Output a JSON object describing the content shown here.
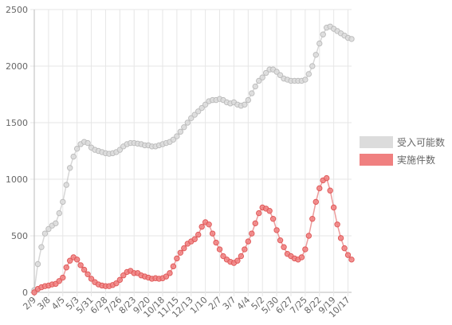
{
  "chart_data": {
    "type": "line",
    "categories": [
      "2/9",
      null,
      null,
      null,
      "3/8",
      null,
      null,
      null,
      "4/5",
      null,
      null,
      null,
      "5/3",
      null,
      null,
      null,
      "5/31",
      null,
      null,
      null,
      "6/28",
      null,
      null,
      null,
      "7/26",
      null,
      null,
      null,
      "8/23",
      null,
      null,
      null,
      "9/20",
      null,
      null,
      null,
      "10/18",
      null,
      null,
      null,
      "11/15",
      null,
      null,
      null,
      "12/13",
      null,
      null,
      null,
      "1/10",
      null,
      null,
      null,
      "2/7",
      null,
      null,
      null,
      "3/7",
      null,
      null,
      null,
      "4/4",
      null,
      null,
      null,
      "5/2",
      null,
      null,
      null,
      "5/30",
      null,
      null,
      null,
      "6/27",
      null,
      null,
      null,
      "7/25",
      null,
      null,
      null,
      "8/22",
      null,
      null,
      null,
      "9/19",
      null,
      null,
      null,
      "10/17",
      null
    ],
    "series": [
      {
        "name": "受入可能数",
        "color": "#dcdcdc",
        "border": "#bdbdbd",
        "values": [
          20,
          250,
          400,
          520,
          560,
          590,
          610,
          700,
          800,
          950,
          1100,
          1200,
          1270,
          1310,
          1330,
          1320,
          1280,
          1260,
          1250,
          1240,
          1230,
          1225,
          1230,
          1240,
          1260,
          1290,
          1310,
          1320,
          1320,
          1315,
          1310,
          1300,
          1300,
          1290,
          1290,
          1300,
          1310,
          1320,
          1330,
          1350,
          1380,
          1420,
          1460,
          1500,
          1540,
          1570,
          1600,
          1630,
          1660,
          1690,
          1700,
          1700,
          1710,
          1700,
          1680,
          1670,
          1680,
          1660,
          1650,
          1660,
          1700,
          1760,
          1820,
          1870,
          1900,
          1940,
          1970,
          1970,
          1950,
          1920,
          1890,
          1880,
          1870,
          1870,
          1870,
          1870,
          1880,
          1930,
          2000,
          2100,
          2200,
          2280,
          2340,
          2350,
          2330,
          2310,
          2290,
          2270,
          2250,
          2240
        ]
      },
      {
        "name": "実施件数",
        "color": "#f08080",
        "border": "#e05a5a",
        "values": [
          0,
          30,
          45,
          55,
          60,
          70,
          75,
          100,
          130,
          220,
          280,
          310,
          290,
          240,
          200,
          160,
          120,
          90,
          70,
          60,
          55,
          55,
          65,
          80,
          110,
          150,
          180,
          190,
          170,
          170,
          150,
          140,
          130,
          120,
          125,
          120,
          125,
          140,
          170,
          230,
          300,
          350,
          390,
          430,
          450,
          470,
          510,
          580,
          620,
          600,
          520,
          440,
          380,
          320,
          290,
          270,
          260,
          280,
          320,
          380,
          450,
          520,
          610,
          700,
          750,
          740,
          720,
          650,
          550,
          460,
          400,
          340,
          320,
          300,
          290,
          310,
          380,
          500,
          650,
          800,
          920,
          990,
          1010,
          900,
          750,
          600,
          480,
          390,
          330,
          290
        ]
      }
    ],
    "ylim": [
      0,
      2500
    ],
    "yticks": [
      0,
      500,
      1000,
      1500,
      2000,
      2500
    ],
    "grid": true,
    "legend": "right"
  }
}
